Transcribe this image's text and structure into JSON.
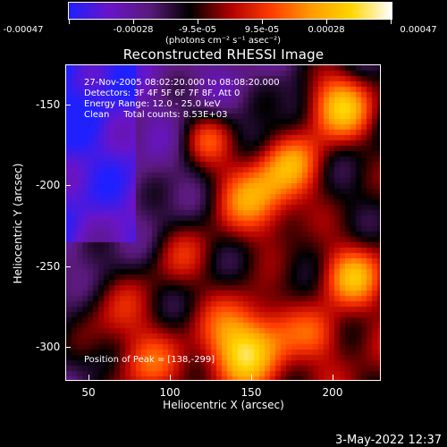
{
  "colorbar": {
    "ticks": [
      "-0.00047",
      "-0.00028",
      "-9.5e-05",
      "9.5e-05",
      "0.00028",
      "0.00047"
    ],
    "units": "(photons cm⁻² s⁻¹ asec⁻²)",
    "colors": [
      "#2020ff",
      "#6a14c8",
      "#5a1a7a",
      "#000000",
      "#b00000",
      "#ff3b00",
      "#ff9a00",
      "#ffd600",
      "#ffffff"
    ]
  },
  "title": "Reconstructed RHESSI Image",
  "overlay": {
    "time_range": "27-Nov-2005 08:02:20.000 to 08:08:20.000",
    "detectors": "Detectors: 3F 4F 5F 6F 7F 8F, Att 0",
    "energy_range": "Energy Range: 12.0 - 25.0 keV",
    "method_counts": "Clean     Total counts: 8.53E+03",
    "peak_position": "Position of Peak = [138,-299]"
  },
  "axes": {
    "xlabel": "Heliocentric X (arcsec)",
    "ylabel": "Heliocentric Y (arcsec)",
    "xticks": [
      "50",
      "100",
      "150",
      "200"
    ],
    "yticks": [
      "-150",
      "-200",
      "-250",
      "-300"
    ]
  },
  "footer": {
    "timestamp": "3-May-2022 12:37"
  },
  "image": {
    "description_icon": "heatmap-image",
    "palette": "rhessi-diverging"
  }
}
